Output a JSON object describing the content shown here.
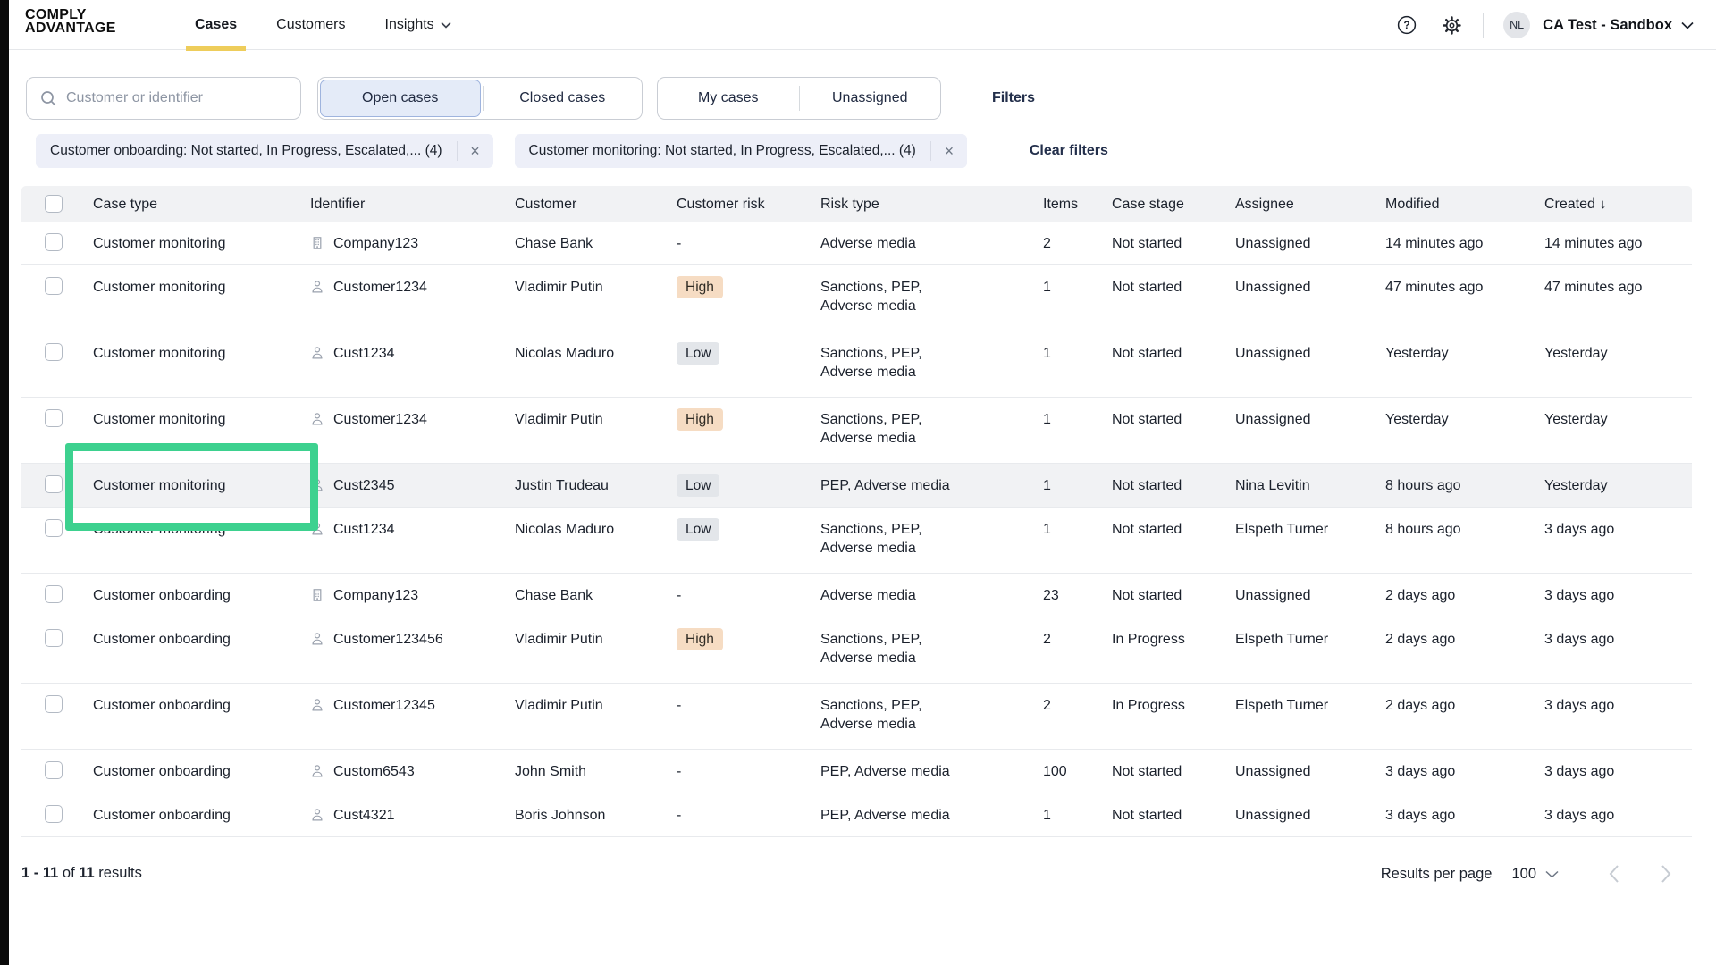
{
  "brand": {
    "logo_line1": "COMPLY",
    "logo_line2": "ADVANTAGE"
  },
  "nav": {
    "items": [
      {
        "label": "Cases",
        "active": true
      },
      {
        "label": "Customers",
        "active": false
      },
      {
        "label": "Insights",
        "active": false,
        "has_dropdown": true
      }
    ]
  },
  "account": {
    "avatar_initials": "NL",
    "name": "CA Test - Sandbox"
  },
  "toolbar": {
    "search_placeholder": "Customer or identifier",
    "case_state_options": [
      "Open cases",
      "Closed cases"
    ],
    "case_state_selected": "Open cases",
    "ownership_options": [
      "My cases",
      "Unassigned"
    ],
    "filters_label": "Filters"
  },
  "filter_chips": [
    {
      "label": "Customer onboarding: Not started, In Progress, Escalated,... (4)"
    },
    {
      "label": "Customer monitoring: Not started, In Progress, Escalated,... (4)"
    }
  ],
  "clear_filters_label": "Clear filters",
  "glyphs": {
    "close": "×",
    "sort_desc": "↓",
    "help": "?"
  },
  "table": {
    "columns": [
      "Case type",
      "Identifier",
      "Customer",
      "Customer risk",
      "Risk type",
      "Items",
      "Case stage",
      "Assignee",
      "Modified",
      "Created"
    ],
    "sorted_by": "Created",
    "sort_direction": "desc",
    "rows": [
      {
        "case_type": "Customer monitoring",
        "id_icon": "company",
        "identifier": "Company123",
        "customer": "Chase Bank",
        "risk": "-",
        "risk_type": [
          "Adverse media"
        ],
        "items": "2",
        "stage": "Not started",
        "assignee": "Unassigned",
        "modified": "14 minutes ago",
        "created": "14 minutes ago",
        "highlighted": false
      },
      {
        "case_type": "Customer monitoring",
        "id_icon": "person",
        "identifier": "Customer1234",
        "customer": "Vladimir Putin",
        "risk": "High",
        "risk_type": [
          "Sanctions, PEP,",
          "Adverse media"
        ],
        "items": "1",
        "stage": "Not started",
        "assignee": "Unassigned",
        "modified": "47 minutes ago",
        "created": "47 minutes ago",
        "highlighted": false
      },
      {
        "case_type": "Customer monitoring",
        "id_icon": "person",
        "identifier": "Cust1234",
        "customer": "Nicolas Maduro",
        "risk": "Low",
        "risk_type": [
          "Sanctions, PEP,",
          "Adverse media"
        ],
        "items": "1",
        "stage": "Not started",
        "assignee": "Unassigned",
        "modified": "Yesterday",
        "created": "Yesterday",
        "highlighted": false
      },
      {
        "case_type": "Customer monitoring",
        "id_icon": "person",
        "identifier": "Customer1234",
        "customer": "Vladimir Putin",
        "risk": "High",
        "risk_type": [
          "Sanctions, PEP,",
          "Adverse media"
        ],
        "items": "1",
        "stage": "Not started",
        "assignee": "Unassigned",
        "modified": "Yesterday",
        "created": "Yesterday",
        "highlighted": false
      },
      {
        "case_type": "Customer monitoring",
        "id_icon": "person",
        "identifier": "Cust2345",
        "customer": "Justin Trudeau",
        "risk": "Low",
        "risk_type": [
          "PEP, Adverse media"
        ],
        "items": "1",
        "stage": "Not started",
        "assignee": "Nina Levitin",
        "modified": "8 hours ago",
        "created": "Yesterday",
        "highlighted": true
      },
      {
        "case_type": "Customer monitoring",
        "id_icon": "person",
        "identifier": "Cust1234",
        "customer": "Nicolas Maduro",
        "risk": "Low",
        "risk_type": [
          "Sanctions, PEP,",
          "Adverse media"
        ],
        "items": "1",
        "stage": "Not started",
        "assignee": "Elspeth Turner",
        "modified": "8 hours ago",
        "created": "3 days ago",
        "highlighted": false
      },
      {
        "case_type": "Customer onboarding",
        "id_icon": "company",
        "identifier": "Company123",
        "customer": "Chase Bank",
        "risk": "-",
        "risk_type": [
          "Adverse media"
        ],
        "items": "23",
        "stage": "Not started",
        "assignee": "Unassigned",
        "modified": "2 days ago",
        "created": "3 days ago",
        "highlighted": false
      },
      {
        "case_type": "Customer onboarding",
        "id_icon": "person",
        "identifier": "Customer123456",
        "customer": "Vladimir Putin",
        "risk": "High",
        "risk_type": [
          "Sanctions, PEP,",
          "Adverse media"
        ],
        "items": "2",
        "stage": "In Progress",
        "assignee": "Elspeth Turner",
        "modified": "2 days ago",
        "created": "3 days ago",
        "highlighted": false
      },
      {
        "case_type": "Customer onboarding",
        "id_icon": "person",
        "identifier": "Customer12345",
        "customer": "Vladimir Putin",
        "risk": "-",
        "risk_type": [
          "Sanctions, PEP,",
          "Adverse media"
        ],
        "items": "2",
        "stage": "In Progress",
        "assignee": "Elspeth Turner",
        "modified": "2 days ago",
        "created": "3 days ago",
        "highlighted": false
      },
      {
        "case_type": "Customer onboarding",
        "id_icon": "person",
        "identifier": "Custom6543",
        "customer": "John Smith",
        "risk": "-",
        "risk_type": [
          "PEP, Adverse media"
        ],
        "items": "100",
        "stage": "Not started",
        "assignee": "Unassigned",
        "modified": "3 days ago",
        "created": "3 days ago",
        "highlighted": false
      },
      {
        "case_type": "Customer onboarding",
        "id_icon": "person",
        "identifier": "Cust4321",
        "customer": "Boris Johnson",
        "risk": "-",
        "risk_type": [
          "PEP, Adverse media"
        ],
        "items": "1",
        "stage": "Not started",
        "assignee": "Unassigned",
        "modified": "3 days ago",
        "created": "3 days ago",
        "highlighted": false
      }
    ]
  },
  "footer": {
    "range": "1 - 11",
    "of_label": "of",
    "total": "11",
    "results_label": "results",
    "results_per_page_label": "Results per page",
    "per_page_value": "100"
  },
  "colors": {
    "active_tab_underline": "#eecd5b",
    "highlight_box_green": "#3dd18f",
    "risk_high_bg": "#f6dcc3",
    "risk_low_bg": "#e3e6ea",
    "chip_bg": "#edeff8",
    "selected_toggle_bg": "#e4ebf8",
    "selected_toggle_border": "#9fb4de",
    "table_header_bg": "#f1f2f4",
    "highlighted_row_bg": "#f1f2f4"
  }
}
